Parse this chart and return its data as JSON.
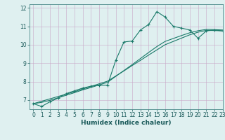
{
  "title": "",
  "xlabel": "Humidex (Indice chaleur)",
  "ylabel": "",
  "bg_color": "#dff0f0",
  "line_color": "#1a7a6a",
  "grid_color": "#c8a8c8",
  "axis_color": "#4a8a8a",
  "tick_color": "#1a5a5a",
  "xlim": [
    -0.5,
    23
  ],
  "ylim": [
    6.5,
    12.2
  ],
  "yticks": [
    7,
    8,
    9,
    10,
    11,
    12
  ],
  "xticks": [
    0,
    1,
    2,
    3,
    4,
    5,
    6,
    7,
    8,
    9,
    10,
    11,
    12,
    13,
    14,
    15,
    16,
    17,
    18,
    19,
    20,
    21,
    22,
    23
  ],
  "line1_x": [
    0,
    1,
    2,
    3,
    4,
    5,
    6,
    7,
    8,
    9,
    10,
    11,
    12,
    13,
    14,
    15,
    16,
    17,
    18,
    19,
    20,
    21,
    22,
    23
  ],
  "line1_y": [
    6.8,
    6.65,
    6.9,
    7.1,
    7.35,
    7.5,
    7.65,
    7.75,
    7.8,
    7.8,
    9.15,
    10.15,
    10.2,
    10.8,
    11.1,
    11.8,
    11.5,
    11.0,
    10.9,
    10.8,
    10.35,
    10.75,
    10.8,
    10.75
  ],
  "line2_x": [
    0,
    1,
    2,
    3,
    4,
    5,
    6,
    7,
    8,
    9,
    10,
    11,
    12,
    13,
    14,
    15,
    16,
    17,
    18,
    19,
    20,
    21,
    22,
    23
  ],
  "line2_y": [
    6.8,
    6.87,
    6.98,
    7.12,
    7.26,
    7.4,
    7.55,
    7.68,
    7.82,
    7.96,
    8.28,
    8.6,
    8.92,
    9.25,
    9.58,
    9.9,
    10.18,
    10.34,
    10.5,
    10.65,
    10.76,
    10.83,
    10.82,
    10.8
  ],
  "line3_x": [
    0,
    1,
    2,
    3,
    4,
    5,
    6,
    7,
    8,
    9,
    10,
    11,
    12,
    13,
    14,
    15,
    16,
    17,
    18,
    19,
    20,
    21,
    22,
    23
  ],
  "line3_y": [
    6.8,
    6.93,
    7.06,
    7.19,
    7.32,
    7.45,
    7.6,
    7.74,
    7.88,
    8.02,
    8.3,
    8.58,
    8.87,
    9.15,
    9.44,
    9.72,
    10.0,
    10.18,
    10.36,
    10.54,
    10.68,
    10.78,
    10.77,
    10.75
  ],
  "marker": "+",
  "markersize": 3.5,
  "linewidth": 0.8
}
